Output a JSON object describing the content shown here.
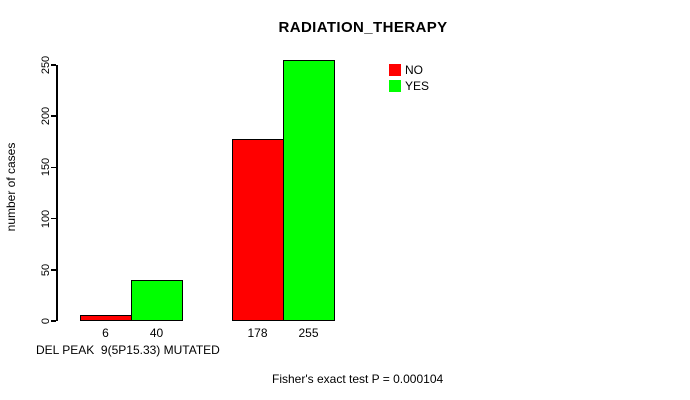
{
  "chart_data": {
    "type": "bar",
    "title": "RADIATION_THERAPY",
    "ylabel": "number of cases",
    "xlabel": "DEL PEAK  9(5P15.33) MUTATED",
    "footnote": "Fisher's exact test P = 0.000104",
    "ylim": [
      0,
      250
    ],
    "yticks": [
      0,
      50,
      100,
      150,
      200,
      250
    ],
    "grid": false,
    "legend_position": "top-right",
    "series": [
      {
        "name": "NO",
        "color": "#FF0000",
        "values": [
          6,
          178
        ]
      },
      {
        "name": "YES",
        "color": "#00FF00",
        "values": [
          40,
          255
        ]
      }
    ],
    "bar_count_labels": [
      [
        "6",
        "178"
      ],
      [
        "40",
        "255"
      ]
    ]
  }
}
